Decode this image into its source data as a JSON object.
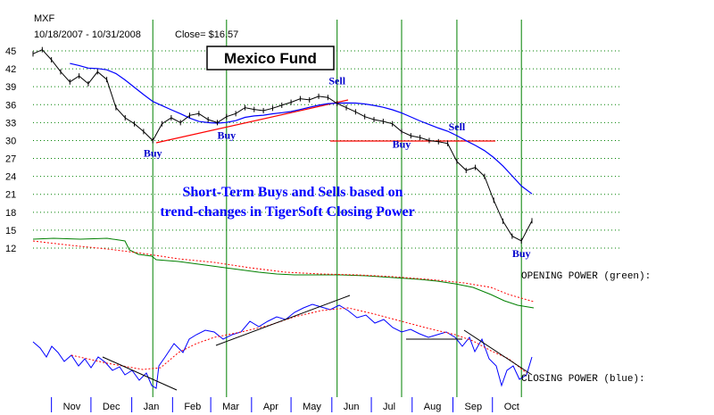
{
  "header": {
    "ticker": "MXF",
    "date_range": "10/18/2007 - 10/31/2008",
    "close": "Close= $16.57"
  },
  "title": "Mexico Fund",
  "annotation": [
    "Short-Term Buys and Sells based on",
    "trend-changes in TigerSoft Closing Power"
  ],
  "labels": {
    "opening_power": "OPENING POWER (green):",
    "closing_power": "CLOSING POWER (blue):"
  },
  "colors": {
    "price": "#000000",
    "moving_average": "#0000ff",
    "trendline": "#ff0000",
    "signal_line": "#008000",
    "opening_power": "#008000",
    "closing_power": "#0000ff",
    "power_ma": "#ff0000",
    "gridline": "#008000",
    "signal_text": "#0000cc"
  },
  "chart_data": {
    "type": "line",
    "title": "Mexico Fund",
    "ylim": [
      12,
      45
    ],
    "yticks": [
      45,
      42,
      39,
      36,
      33,
      30,
      27,
      24,
      21,
      18,
      15,
      12
    ],
    "grid": "horizontal dotted",
    "months": [
      "Nov",
      "Dec",
      "Jan",
      "Feb",
      "Mar",
      "Apr",
      "May",
      "Jun",
      "Jul",
      "Aug",
      "Sep",
      "Oct"
    ],
    "x": [
      "2007-10-18",
      "2007-10-25",
      "2007-11-01",
      "2007-11-08",
      "2007-11-15",
      "2007-11-22",
      "2007-11-29",
      "2007-12-06",
      "2007-12-13",
      "2007-12-20",
      "2007-12-27",
      "2008-01-03",
      "2008-01-10",
      "2008-01-17",
      "2008-01-24",
      "2008-01-31",
      "2008-02-07",
      "2008-02-14",
      "2008-02-21",
      "2008-02-28",
      "2008-03-06",
      "2008-03-13",
      "2008-03-20",
      "2008-03-27",
      "2008-04-03",
      "2008-04-10",
      "2008-04-17",
      "2008-04-24",
      "2008-05-01",
      "2008-05-08",
      "2008-05-15",
      "2008-05-22",
      "2008-05-29",
      "2008-06-05",
      "2008-06-12",
      "2008-06-19",
      "2008-06-26",
      "2008-07-03",
      "2008-07-10",
      "2008-07-17",
      "2008-07-24",
      "2008-07-31",
      "2008-08-07",
      "2008-08-14",
      "2008-08-21",
      "2008-08-28",
      "2008-09-04",
      "2008-09-11",
      "2008-09-18",
      "2008-09-25",
      "2008-10-02",
      "2008-10-09",
      "2008-10-16",
      "2008-10-23",
      "2008-10-31"
    ],
    "series": [
      {
        "name": "MXF",
        "values": [
          44.5,
          45.2,
          43.5,
          41.5,
          39.8,
          40.8,
          39.5,
          41.5,
          40.2,
          35.5,
          33.8,
          32.8,
          31.5,
          30.0,
          32.8,
          33.8,
          33.0,
          34.2,
          34.5,
          33.5,
          33.0,
          34.0,
          34.5,
          35.5,
          35.2,
          35.0,
          35.4,
          35.9,
          36.4,
          37.0,
          36.8,
          37.4,
          37.2,
          36.2,
          35.5,
          34.8,
          34.0,
          33.5,
          33.2,
          32.8,
          31.5,
          30.8,
          30.5,
          30.0,
          29.8,
          29.5,
          26.5,
          25.0,
          25.5,
          24.0,
          20.0,
          16.5,
          14.0,
          13.2,
          16.57
        ]
      }
    ],
    "signals": [
      {
        "label": "Buy",
        "date": "2008-01-17",
        "price": 30.0,
        "placement": "below"
      },
      {
        "label": "Buy",
        "date": "2008-03-13",
        "price": 33.0,
        "placement": "below"
      },
      {
        "label": "Sell",
        "date": "2008-06-05",
        "price": 37.6,
        "placement": "above"
      },
      {
        "label": "Buy",
        "date": "2008-07-24",
        "price": 31.5,
        "placement": "below"
      },
      {
        "label": "Sell",
        "date": "2008-09-04",
        "price": 29.9,
        "placement": "above"
      },
      {
        "label": "Buy",
        "date": "2008-10-23",
        "price": 13.2,
        "placement": "below"
      }
    ],
    "signal_dates": [
      "2008-01-17",
      "2008-03-13",
      "2008-06-05",
      "2008-07-24",
      "2008-09-04",
      "2008-10-23"
    ]
  }
}
